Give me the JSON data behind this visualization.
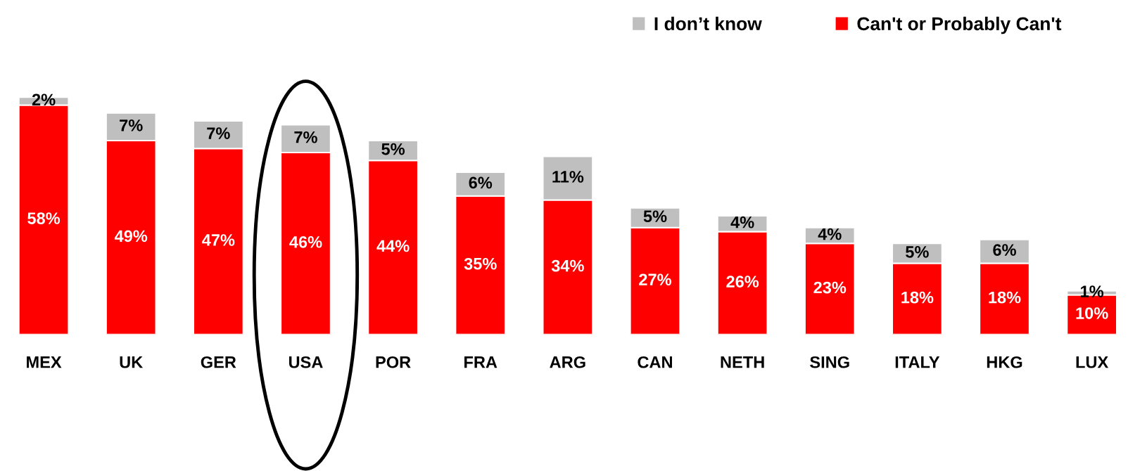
{
  "chart_data": {
    "type": "bar",
    "stacked": true,
    "legend": "top right",
    "grid": false,
    "tick_labels": "x",
    "categories": [
      "MEX",
      "UK",
      "GER",
      "USA",
      "POR",
      "FRA",
      "ARG",
      "CAN",
      "NETH",
      "SING",
      "ITALY",
      "HKG",
      "LUX"
    ],
    "series": [
      {
        "name": "Can't or Probably Can't",
        "color": "#ff0000",
        "values": [
          58,
          49,
          47,
          46,
          44,
          35,
          34,
          27,
          26,
          23,
          18,
          18,
          10
        ],
        "value_labels": [
          "58%",
          "49%",
          "47%",
          "46%",
          "44%",
          "35%",
          "34%",
          "27%",
          "26%",
          "23%",
          "18%",
          "18%",
          "10%"
        ]
      },
      {
        "name": "I don’t know",
        "color": "#bfbfbf",
        "values": [
          2,
          7,
          7,
          7,
          5,
          6,
          11,
          5,
          4,
          4,
          5,
          6,
          1
        ],
        "value_labels": [
          "2%",
          "7%",
          "7%",
          "7%",
          "5%",
          "6%",
          "11%",
          "5%",
          "4%",
          "4%",
          "5%",
          "6%",
          "1%"
        ]
      }
    ]
  }
}
